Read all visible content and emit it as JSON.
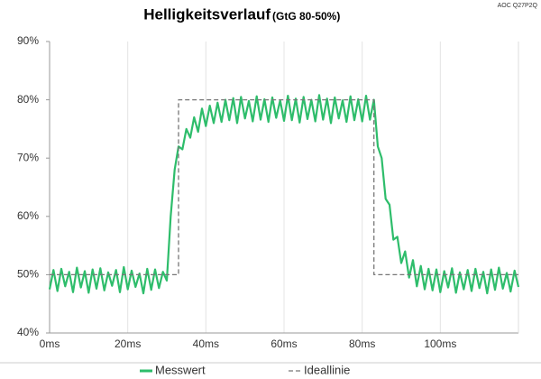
{
  "chart_data": {
    "type": "line",
    "title": "Helligkeitsverlauf",
    "subtitle": "(GtG 80-50%)",
    "model": "AOC Q27P2Q",
    "x": [
      0,
      1,
      2,
      3,
      4,
      5,
      6,
      7,
      8,
      9,
      10,
      11,
      12,
      13,
      14,
      15,
      16,
      17,
      18,
      19,
      20,
      21,
      22,
      23,
      24,
      25,
      26,
      27,
      28,
      29,
      30,
      31,
      32,
      33,
      34,
      35,
      36,
      37,
      38,
      39,
      40,
      41,
      42,
      43,
      44,
      45,
      46,
      47,
      48,
      49,
      50,
      51,
      52,
      53,
      54,
      55,
      56,
      57,
      58,
      59,
      60,
      61,
      62,
      63,
      64,
      65,
      66,
      67,
      68,
      69,
      70,
      71,
      72,
      73,
      74,
      75,
      76,
      77,
      78,
      79,
      80,
      81,
      82,
      83,
      84,
      85,
      86,
      87,
      88,
      89,
      90,
      91,
      92,
      93,
      94,
      95,
      96,
      97,
      98,
      99,
      100,
      101,
      102,
      103,
      104,
      105,
      106,
      107,
      108,
      109,
      110,
      111,
      112,
      113,
      114,
      115,
      116,
      117,
      118,
      119,
      120
    ],
    "series": [
      {
        "name": "Messwert",
        "color": "#2ebd6b",
        "style": "solid",
        "values": [
          47.5,
          50.8,
          47.2,
          51,
          48,
          50.5,
          47,
          51.2,
          47.8,
          50.6,
          46.9,
          50.9,
          47.6,
          51.1,
          47.3,
          50.4,
          48.1,
          50.8,
          47,
          51.3,
          47.5,
          50.7,
          47.9,
          50.2,
          46.8,
          51,
          47.4,
          50.9,
          47.7,
          50.5,
          49,
          60,
          68,
          72,
          71.5,
          75,
          73.5,
          77,
          74.5,
          78.5,
          75.5,
          79,
          76,
          79.5,
          76.2,
          80,
          76.5,
          80.3,
          76,
          80.5,
          76.8,
          79.8,
          76.3,
          80.6,
          76.6,
          80.1,
          76.2,
          80.4,
          76.9,
          79.9,
          76.4,
          80.7,
          76.5,
          80.2,
          76.1,
          80.5,
          76.7,
          80,
          76.3,
          80.8,
          76.6,
          80.2,
          76,
          80.4,
          76.8,
          79.9,
          76.2,
          80.6,
          76.5,
          80.1,
          76.3,
          80.7,
          76.6,
          80,
          72,
          70,
          63,
          62,
          56,
          56.5,
          52,
          54,
          49.5,
          52.5,
          48,
          51.5,
          47.5,
          51,
          47.3,
          50.9,
          47,
          50.6,
          47.8,
          51.1,
          46.9,
          50.4,
          47.5,
          50.8,
          47.2,
          51,
          47.7,
          50.5,
          46.8,
          50.9,
          47.4,
          51.2,
          47.6,
          50.3,
          47.1,
          50.7,
          47.9
        ]
      },
      {
        "name": "Ideallinie",
        "color": "#777777",
        "style": "dashed",
        "x": [
          0,
          33,
          33,
          83,
          83,
          120
        ],
        "values": [
          50,
          50,
          80,
          80,
          50,
          50
        ]
      }
    ],
    "xlim": [
      0,
      120
    ],
    "xticks": [
      {
        "value": 0,
        "label": "0ms"
      },
      {
        "value": 20,
        "label": "20ms"
      },
      {
        "value": 40,
        "label": "40ms"
      },
      {
        "value": 60,
        "label": "60ms"
      },
      {
        "value": 80,
        "label": "80ms"
      },
      {
        "value": 100,
        "label": "100ms"
      }
    ],
    "ylim": [
      40,
      90
    ],
    "yticks": [
      {
        "value": 40,
        "label": "40%"
      },
      {
        "value": 50,
        "label": "50%"
      },
      {
        "value": 60,
        "label": "60%"
      },
      {
        "value": 70,
        "label": "70%"
      },
      {
        "value": 80,
        "label": "80%"
      },
      {
        "value": 90,
        "label": "90%"
      }
    ],
    "grid": true
  }
}
